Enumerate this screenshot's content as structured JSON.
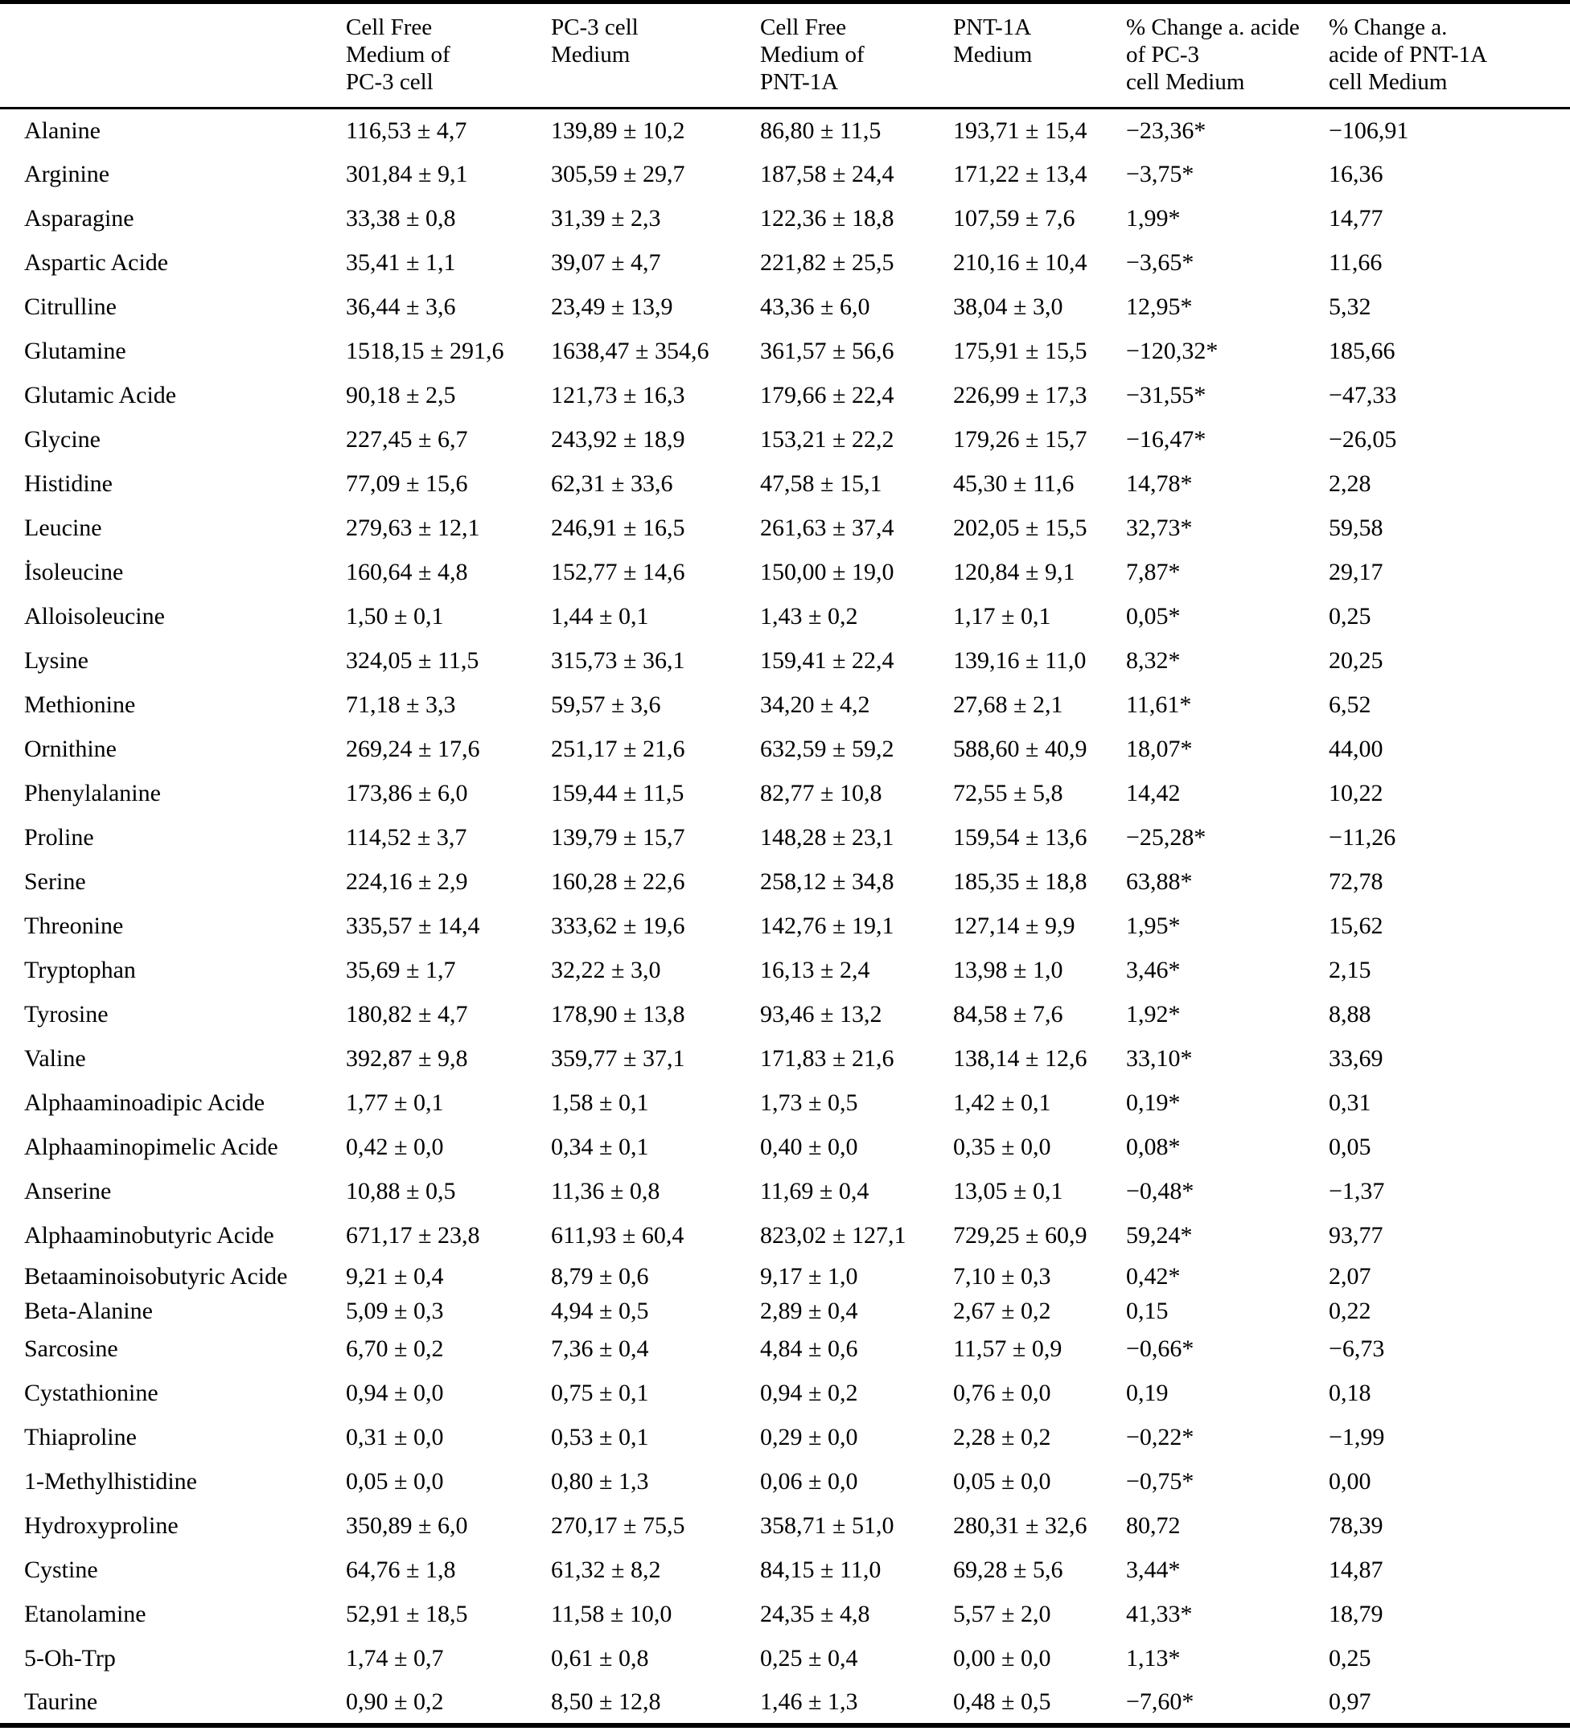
{
  "table": {
    "columns": [
      {
        "label": ""
      },
      {
        "label": "Cell Free\nMedium of\nPC-3 cell"
      },
      {
        "label": "PC-3 cell\nMedium"
      },
      {
        "label": "Cell Free\nMedium of\nPNT-1A"
      },
      {
        "label": "PNT-1A\nMedium"
      },
      {
        "label": "% Change a. acide\nof PC-3\ncell Medium"
      },
      {
        "label": "% Change a.\nacide of PNT-1A\ncell Medium"
      }
    ],
    "rows": [
      {
        "name": "Alanine",
        "values": [
          "116,53 ± 4,7",
          "139,89 ± 10,2",
          "86,80 ± 11,5",
          "193,71 ± 15,4",
          "−23,36*",
          "−106,91"
        ]
      },
      {
        "name": "Arginine",
        "values": [
          "301,84 ± 9,1",
          "305,59 ± 29,7",
          "187,58 ± 24,4",
          "171,22 ± 13,4",
          "−3,75*",
          "16,36"
        ]
      },
      {
        "name": "Asparagine",
        "values": [
          "33,38 ± 0,8",
          "31,39 ± 2,3",
          "122,36 ± 18,8",
          "107,59 ± 7,6",
          "1,99*",
          "14,77"
        ]
      },
      {
        "name": "Aspartic Acide",
        "values": [
          "35,41 ± 1,1",
          "39,07 ± 4,7",
          "221,82 ± 25,5",
          "210,16 ± 10,4",
          "−3,65*",
          "11,66"
        ]
      },
      {
        "name": "Citrulline",
        "values": [
          "36,44 ± 3,6",
          "23,49 ± 13,9",
          "43,36 ± 6,0",
          "38,04 ± 3,0",
          "12,95*",
          "5,32"
        ]
      },
      {
        "name": "Glutamine",
        "values": [
          "1518,15 ± 291,6",
          "1638,47 ± 354,6",
          "361,57 ± 56,6",
          "175,91 ± 15,5",
          "−120,32*",
          "185,66"
        ]
      },
      {
        "name": "Glutamic Acide",
        "values": [
          "90,18 ± 2,5",
          "121,73 ± 16,3",
          "179,66 ± 22,4",
          "226,99 ± 17,3",
          "−31,55*",
          "−47,33"
        ]
      },
      {
        "name": "Glycine",
        "values": [
          "227,45 ± 6,7",
          "243,92 ± 18,9",
          "153,21 ± 22,2",
          "179,26 ± 15,7",
          "−16,47*",
          "−26,05"
        ]
      },
      {
        "name": "Histidine",
        "values": [
          "77,09 ± 15,6",
          "62,31 ± 33,6",
          "47,58 ± 15,1",
          "45,30 ± 11,6",
          "14,78*",
          "2,28"
        ]
      },
      {
        "name": "Leucine",
        "values": [
          "279,63 ± 12,1",
          "246,91 ± 16,5",
          "261,63 ± 37,4",
          "202,05 ± 15,5",
          "32,73*",
          "59,58"
        ]
      },
      {
        "name": "İsoleucine",
        "values": [
          "160,64 ± 4,8",
          "152,77 ± 14,6",
          "150,00 ± 19,0",
          "120,84 ± 9,1",
          "7,87*",
          "29,17"
        ]
      },
      {
        "name": "Alloisoleucine",
        "values": [
          "1,50 ± 0,1",
          "1,44 ± 0,1",
          "1,43 ± 0,2",
          "1,17 ± 0,1",
          "0,05*",
          "0,25"
        ]
      },
      {
        "name": "Lysine",
        "values": [
          "324,05 ± 11,5",
          "315,73 ± 36,1",
          "159,41 ± 22,4",
          "139,16 ± 11,0",
          "8,32*",
          "20,25"
        ]
      },
      {
        "name": "Methionine",
        "values": [
          "71,18 ± 3,3",
          "59,57 ± 3,6",
          "34,20 ± 4,2",
          "27,68 ± 2,1",
          "11,61*",
          "6,52"
        ]
      },
      {
        "name": "Ornithine",
        "values": [
          "269,24 ± 17,6",
          "251,17 ± 21,6",
          "632,59 ± 59,2",
          "588,60 ± 40,9",
          "18,07*",
          "44,00"
        ]
      },
      {
        "name": "Phenylalanine",
        "values": [
          "173,86 ± 6,0",
          "159,44 ± 11,5",
          "82,77 ± 10,8",
          "72,55 ± 5,8",
          "14,42",
          "10,22"
        ]
      },
      {
        "name": "Proline",
        "values": [
          "114,52 ± 3,7",
          "139,79 ± 15,7",
          "148,28 ± 23,1",
          "159,54 ± 13,6",
          "−25,28*",
          "−11,26"
        ]
      },
      {
        "name": "Serine",
        "values": [
          "224,16 ± 2,9",
          "160,28 ± 22,6",
          "258,12 ± 34,8",
          "185,35 ± 18,8",
          "63,88*",
          "72,78"
        ]
      },
      {
        "name": "Threonine",
        "values": [
          "335,57 ± 14,4",
          "333,62 ± 19,6",
          "142,76 ± 19,1",
          "127,14 ± 9,9",
          "1,95*",
          "15,62"
        ]
      },
      {
        "name": "Tryptophan",
        "values": [
          "35,69 ± 1,7",
          "32,22 ± 3,0",
          "16,13 ± 2,4",
          "13,98 ± 1,0",
          "3,46*",
          "2,15"
        ]
      },
      {
        "name": "Tyrosine",
        "values": [
          "180,82 ± 4,7",
          "178,90 ± 13,8",
          "93,46 ± 13,2",
          "84,58 ± 7,6",
          "1,92*",
          "8,88"
        ]
      },
      {
        "name": "Valine",
        "values": [
          "392,87 ± 9,8",
          "359,77 ± 37,1",
          "171,83 ± 21,6",
          "138,14 ± 12,6",
          "33,10*",
          "33,69"
        ]
      },
      {
        "name": "Alphaaminoadipic Acide",
        "values": [
          "1,77 ± 0,1",
          "1,58 ± 0,1",
          "1,73 ± 0,5",
          "1,42 ± 0,1",
          "0,19*",
          "0,31"
        ]
      },
      {
        "name": "Alphaaminopimelic Acide",
        "values": [
          "0,42 ± 0,0",
          "0,34 ± 0,1",
          "0,40 ± 0,0",
          "0,35 ± 0,0",
          "0,08*",
          "0,05"
        ]
      },
      {
        "name": "Anserine",
        "values": [
          "10,88 ± 0,5",
          "11,36 ± 0,8",
          "11,69 ± 0,4",
          "13,05 ± 0,1",
          "−0,48*",
          "−1,37"
        ]
      },
      {
        "name": "Alphaaminobutyric Acide",
        "values": [
          "671,17 ± 23,8",
          "611,93 ± 60,4",
          "823,02 ± 127,1",
          "729,25 ± 60,9",
          "59,24*",
          "93,77"
        ]
      },
      {
        "name": "Betaaminoisobutyric Acide",
        "values": [
          "9,21 ± 0,4",
          "8,79 ± 0,6",
          "9,17 ± 1,0",
          "7,10 ± 0,3",
          "0,42*",
          "2,07"
        ]
      },
      {
        "name": "Beta-Alanine",
        "values": [
          "5,09 ± 0,3",
          "4,94 ± 0,5",
          "2,89 ± 0,4",
          "2,67 ± 0,2",
          "0,15",
          "0,22"
        ]
      },
      {
        "name": "Sarcosine",
        "values": [
          "6,70 ± 0,2",
          "7,36 ± 0,4",
          "4,84 ± 0,6",
          "11,57 ± 0,9",
          "−0,66*",
          "−6,73"
        ]
      },
      {
        "name": "Cystathionine",
        "values": [
          "0,94 ± 0,0",
          "0,75 ± 0,1",
          "0,94 ± 0,2",
          "0,76 ± 0,0",
          "0,19",
          "0,18"
        ]
      },
      {
        "name": "Thiaproline",
        "values": [
          "0,31 ± 0,0",
          "0,53 ± 0,1",
          "0,29 ± 0,0",
          "2,28 ± 0,2",
          "−0,22*",
          "−1,99"
        ]
      },
      {
        "name": "1-Methylhistidine",
        "values": [
          "0,05 ± 0,0",
          "0,80 ± 1,3",
          "0,06 ± 0,0",
          "0,05 ± 0,0",
          "−0,75*",
          "0,00"
        ]
      },
      {
        "name": "Hydroxyproline",
        "values": [
          "350,89 ± 6,0",
          "270,17 ± 75,5",
          "358,71 ± 51,0",
          "280,31 ± 32,6",
          "80,72",
          "78,39"
        ]
      },
      {
        "name": "Cystine",
        "values": [
          "64,76 ± 1,8",
          "61,32 ± 8,2",
          "84,15 ± 11,0",
          "69,28 ± 5,6",
          "3,44*",
          "14,87"
        ]
      },
      {
        "name": "Etanolamine",
        "values": [
          "52,91 ± 18,5",
          "11,58 ± 10,0",
          "24,35 ± 4,8",
          "5,57 ± 2,0",
          "41,33*",
          "18,79"
        ]
      },
      {
        "name": "5-Oh-Trp",
        "values": [
          "1,74 ± 0,7",
          "0,61 ± 0,8",
          "0,25 ± 0,4",
          "0,00 ± 0,0",
          "1,13*",
          "0,25"
        ]
      },
      {
        "name": "Taurine",
        "values": [
          "0,90 ± 0,2",
          "8,50 ± 12,8",
          "1,46 ± 1,3",
          "0,48 ± 0,5",
          "−7,60*",
          "0,97"
        ]
      }
    ]
  }
}
